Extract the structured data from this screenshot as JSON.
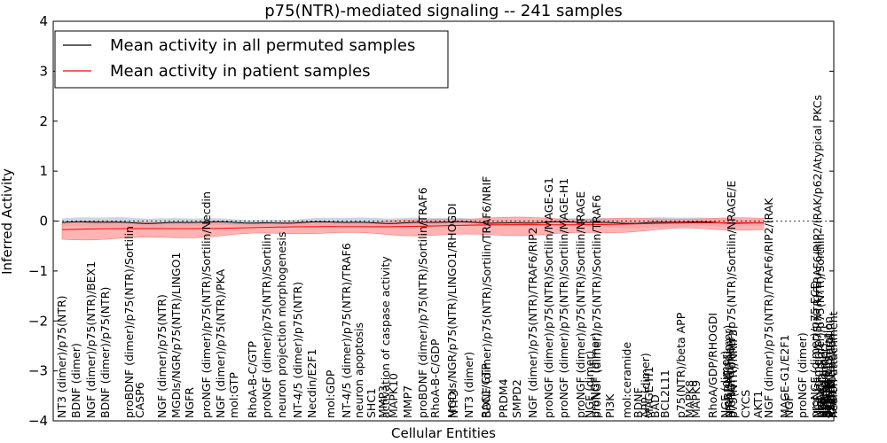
{
  "chart_data": {
    "type": "line",
    "title": "p75(NTR)-mediated signaling -- 241 samples",
    "xlabel": "Cellular Entities",
    "ylabel": "Inferred Activity",
    "ylim": [
      -4,
      4
    ],
    "yticks": [
      -4,
      -3,
      -2,
      -1,
      0,
      1,
      2,
      3,
      4
    ],
    "legend": {
      "placement": "top-left",
      "entries": [
        {
          "label": "Mean activity in all permuted samples",
          "color": "#000000"
        },
        {
          "label": "Mean activity in patient samples",
          "color": "#ff0000"
        }
      ]
    },
    "baseline": 0,
    "permuted_mean_approx": -0.03,
    "patient_mean_range": [
      -0.17,
      -0.03
    ],
    "band_color": "#ff9999",
    "categories": [
      "NT3 (dimer)/p75(NTR)",
      "BDNF (dimer)",
      "NGF (dimer)/p75(NTR)/BEX1",
      "BDNF (dimer)/p75(NTR)",
      "proBDNF (dimer)/p75(NTR)/Sortilin",
      "CASP6",
      "NGF (dimer)/p75(NTR)",
      "MGDIs/NGR/p75(NTR)/LINGO1",
      "NGFR",
      "proNGF (dimer)/p75(NTR)/Sortilin/Necdin",
      "NGF (dimer)/p75(NTR)/PKA",
      "mol:GTP",
      "RhoA-B-C/GTP",
      "proNGF (dimer)/p75(NTR)/Sortilin",
      "neuron projection morphogenesis",
      "NT-4/5 (dimer)/p75(NTR)",
      "Necdin/E2F1",
      "mol:GDP",
      "NT-4/5 (dimer)/p75(NTR)/TRAF6",
      "neuron apoptosis",
      "SHC1",
      "MMP3",
      "activation of caspase activity",
      "MAPK10",
      "MMP7",
      "proBDNF (dimer)/p75(NTR)/Sortilin/TRAF6",
      "RhoA-B-C/GDP",
      "MGDIs/NGR/p75(NTR)/LINGO1/RHOGDI",
      "NTF3",
      "NT3 (dimer)",
      "BDNF (dimer)/p75(NTR)/Sortilin/TRAF6/NRIF",
      "RAC1/GTP",
      "PRDM4",
      "SMPD2",
      "NGF (dimer)/p75(NTR)/TRAF6/RIP2",
      "proNGF (dimer)/p75(NTR)/Sortilin/MAGE-G1",
      "proNGF (dimer)/p75(NTR)/Sortilin/MAGE-H1",
      "proNGF (dimer)/p75(NTR)/Sortilin/NRAGE",
      "proNGF (dimer)/p75(NTR)/Sortilin/TRAF6",
      "NGF (dimer)",
      "proNGF (dimer)",
      "PI3K",
      "mol:ceramide",
      "BDNF",
      "APP (dimer)",
      "MAGE-H1",
      "BAD",
      "BCL2L11",
      "p75(NTR)/beta APP",
      "MAPK8",
      "MAPK9",
      "RhoA/GDP/RHOGDI",
      "NGF (dimer)",
      "proBDNF (dimer)",
      "NT-4/5 (dimer)",
      "proNGF (dimer)/p75(NTR)/Sortilin/NRAGE/E",
      "p75(NTR)/NRIF3",
      "CYCS",
      "AKT1",
      "NGF (dimer)/p75(NTR)/TRAF6/RIP2/IRAK",
      "MAGE-G1/E2F1",
      "NGF",
      "proNGF (dimer)",
      "proNGF (dimer)/p75 ECD",
      "NGF (dimer)/p75(NTR)/TRAF6/RIP2/IRAK/p62/Atypical PKCs",
      "proNGF (dimer)/p75(NTR)/Sortilin",
      "p75 ICD",
      "BDNF (dimer)",
      "NGF (dimer)",
      "APH1B",
      "BIRC3",
      "NCSTN",
      "neurite elongation",
      "p75(NTR)/Sortilin",
      "PSEN1",
      "PSENEN",
      "axon retraction",
      "RAC1",
      "neuron attachment"
    ]
  }
}
